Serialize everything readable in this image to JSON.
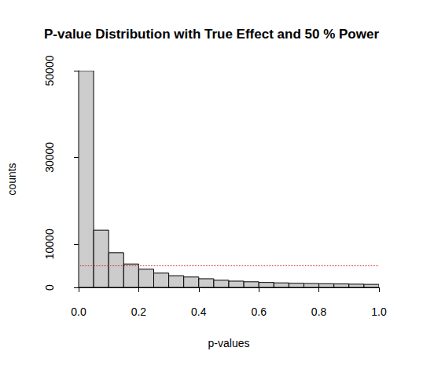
{
  "chart_data": {
    "type": "histogram",
    "title": "P-value Distribution with True Effect and 50 % Power",
    "x_label": "p-values",
    "y_label": "counts",
    "bins": [
      0,
      0.05,
      0.1,
      0.15,
      0.2,
      0.25,
      0.3,
      0.35,
      0.4,
      0.45,
      0.5,
      0.55,
      0.6,
      0.65,
      0.7,
      0.75,
      0.8,
      0.85,
      0.9,
      0.95,
      1
    ],
    "values": [
      50000,
      13200,
      8000,
      5400,
      4200,
      3300,
      2700,
      2400,
      2000,
      1650,
      1450,
      1300,
      1150,
      1050,
      950,
      900,
      850,
      800,
      750,
      700
    ],
    "color": "#cccccc",
    "xlim": [
      0,
      1
    ],
    "xticks": [
      {
        "value": 0,
        "label": "0.0"
      },
      0.2,
      0.4,
      0.6,
      0.8,
      {
        "value": 1,
        "label": "1.0"
      }
    ],
    "ylim": [
      0,
      50000
    ],
    "yticks": [
      0,
      10000,
      30000,
      50000
    ],
    "hline": {
      "value": 5000,
      "color": "#d62728",
      "line_style": "dotted"
    },
    "grid": false
  }
}
